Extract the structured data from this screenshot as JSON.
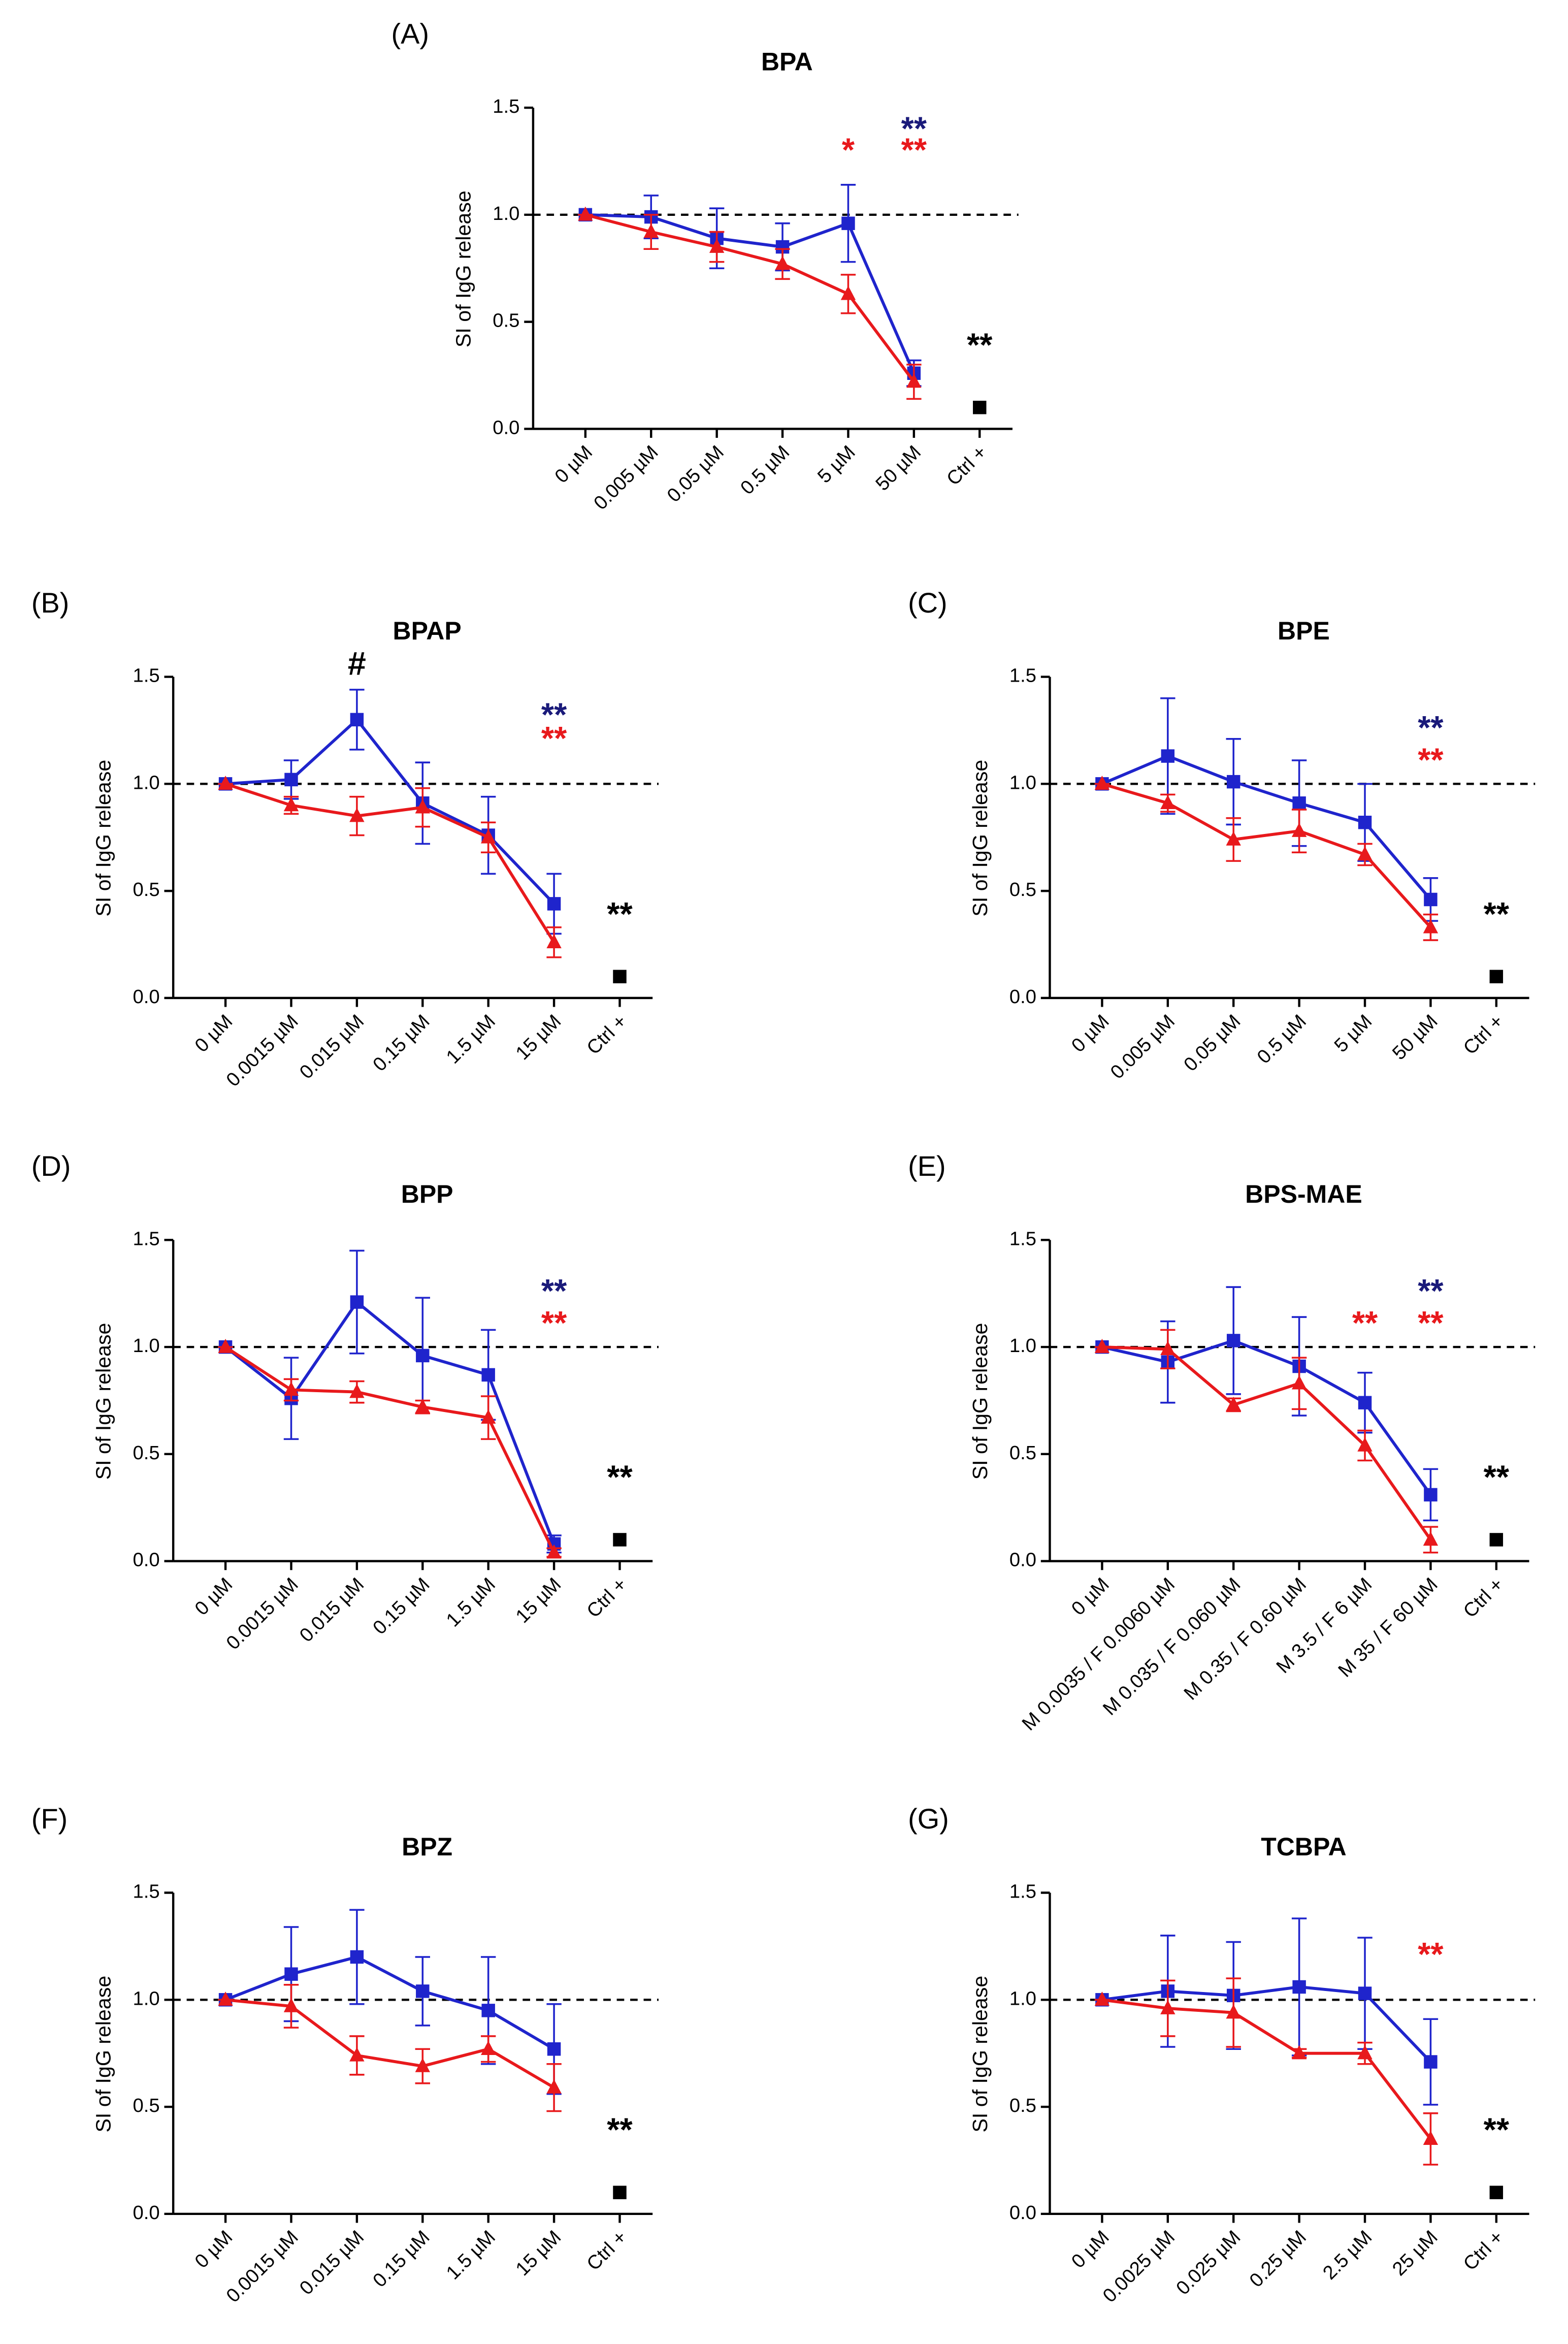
{
  "chart_data": [
    {
      "type": "line",
      "panel": "(A)",
      "title": "BPA",
      "y_label": "SI of IgG release",
      "categories": [
        "0 µM",
        "0.005 µM",
        "0.05 µM",
        "0.5 µM",
        "5 µM",
        "50 µM",
        "Ctrl +"
      ],
      "ylim": [
        0,
        1.5
      ],
      "yticks": [
        {
          "value": 0,
          "label": "0.0"
        },
        0.5,
        {
          "value": 1,
          "label": "1.0"
        },
        1.5
      ],
      "reference_line": 1,
      "series": [
        {
          "color": "#1f24cc",
          "marker": "square",
          "values": [
            1.0,
            0.99,
            0.89,
            0.85,
            0.96,
            0.26,
            null
          ],
          "errors": [
            0,
            0.1,
            0.14,
            0.11,
            0.18,
            0.06,
            null
          ]
        },
        {
          "color": "#e8191c",
          "marker": "triangle",
          "values": [
            1.0,
            0.92,
            0.85,
            0.77,
            0.63,
            0.22,
            null
          ],
          "errors": [
            0,
            0.08,
            0.07,
            0.07,
            0.09,
            0.08,
            null
          ]
        },
        {
          "color": "#000000",
          "marker": "square",
          "values": [
            null,
            null,
            null,
            null,
            null,
            null,
            0.1
          ]
        }
      ],
      "annotations": [
        {
          "text": "*",
          "color": "#e8191c",
          "x": "5 µM",
          "y": 1.29
        },
        {
          "text": "**",
          "color": "#1a1a7a",
          "x": "50 µM",
          "y": 1.39
        },
        {
          "text": "**",
          "color": "#e8191c",
          "x": "50 µM",
          "y": 1.29
        },
        {
          "text": "**",
          "color": "#000000",
          "x": "Ctrl +",
          "y": 0.38
        }
      ]
    },
    {
      "type": "line",
      "panel": "(B)",
      "title": "BPAP",
      "y_label": "SI of IgG release",
      "categories": [
        "0 µM",
        "0.0015 µM",
        "0.015 µM",
        "0.15 µM",
        "1.5 µM",
        "15 µM",
        "Ctrl +"
      ],
      "ylim": [
        0,
        1.5
      ],
      "yticks": [
        {
          "value": 0,
          "label": "0.0"
        },
        0.5,
        {
          "value": 1,
          "label": "1.0"
        },
        1.5
      ],
      "reference_line": 1,
      "series": [
        {
          "color": "#1f24cc",
          "marker": "square",
          "values": [
            1.0,
            1.02,
            1.3,
            0.91,
            0.76,
            0.44,
            null
          ],
          "errors": [
            0,
            0.09,
            0.14,
            0.19,
            0.18,
            0.14,
            null
          ]
        },
        {
          "color": "#e8191c",
          "marker": "triangle",
          "values": [
            1.0,
            0.9,
            0.85,
            0.89,
            0.75,
            0.26,
            null
          ],
          "errors": [
            0,
            0.04,
            0.09,
            0.09,
            0.07,
            0.07,
            null
          ]
        },
        {
          "color": "#000000",
          "marker": "square",
          "values": [
            null,
            null,
            null,
            null,
            null,
            null,
            0.1
          ]
        }
      ],
      "annotations": [
        {
          "text": "#",
          "color": "#000000",
          "x": "0.015 µM",
          "y": 1.55
        },
        {
          "text": "**",
          "color": "#1a1a7a",
          "x": "15 µM",
          "y": 1.31
        },
        {
          "text": "**",
          "color": "#e8191c",
          "x": "15 µM",
          "y": 1.2
        },
        {
          "text": "**",
          "color": "#000000",
          "x": "Ctrl +",
          "y": 0.38
        }
      ]
    },
    {
      "type": "line",
      "panel": "(C)",
      "title": "BPE",
      "y_label": "SI of IgG release",
      "categories": [
        "0 µM",
        "0.005 µM",
        "0.05 µM",
        "0.5 µM",
        "5 µM",
        "50 µM",
        "Ctrl +"
      ],
      "ylim": [
        0,
        1.5
      ],
      "yticks": [
        {
          "value": 0,
          "label": "0.0"
        },
        0.5,
        {
          "value": 1,
          "label": "1.0"
        },
        1.5
      ],
      "reference_line": 1,
      "series": [
        {
          "color": "#1f24cc",
          "marker": "square",
          "values": [
            1.0,
            1.13,
            1.01,
            0.91,
            0.82,
            0.46,
            null
          ],
          "errors": [
            0,
            0.27,
            0.2,
            0.2,
            0.18,
            0.1,
            null
          ]
        },
        {
          "color": "#e8191c",
          "marker": "triangle",
          "values": [
            1.0,
            0.91,
            0.74,
            0.78,
            0.67,
            0.33,
            null
          ],
          "errors": [
            0,
            0.04,
            0.1,
            0.1,
            0.05,
            0.06,
            null
          ]
        },
        {
          "color": "#000000",
          "marker": "square",
          "values": [
            null,
            null,
            null,
            null,
            null,
            null,
            0.1
          ]
        }
      ],
      "annotations": [
        {
          "text": "**",
          "color": "#1a1a7a",
          "x": "50 µM",
          "y": 1.25
        },
        {
          "text": "**",
          "color": "#e8191c",
          "x": "50 µM",
          "y": 1.1
        },
        {
          "text": "**",
          "color": "#000000",
          "x": "Ctrl +",
          "y": 0.38
        }
      ]
    },
    {
      "type": "line",
      "panel": "(D)",
      "title": "BPP",
      "y_label": "SI of IgG release",
      "categories": [
        "0 µM",
        "0.0015 µM",
        "0.015 µM",
        "0.15 µM",
        "1.5 µM",
        "15 µM",
        "Ctrl +"
      ],
      "ylim": [
        0,
        1.5
      ],
      "yticks": [
        {
          "value": 0,
          "label": "0.0"
        },
        0.5,
        {
          "value": 1,
          "label": "1.0"
        },
        1.5
      ],
      "reference_line": 1,
      "series": [
        {
          "color": "#1f24cc",
          "marker": "square",
          "values": [
            1.0,
            0.76,
            1.21,
            0.96,
            0.87,
            0.08,
            null
          ],
          "errors": [
            0,
            0.19,
            0.24,
            0.27,
            0.21,
            0.04,
            null
          ]
        },
        {
          "color": "#e8191c",
          "marker": "triangle",
          "values": [
            1.0,
            0.8,
            0.79,
            0.72,
            0.67,
            0.04,
            null
          ],
          "errors": [
            0,
            0.05,
            0.05,
            0.03,
            0.1,
            0.02,
            null
          ]
        },
        {
          "color": "#000000",
          "marker": "square",
          "values": [
            null,
            null,
            null,
            null,
            null,
            null,
            0.1
          ]
        }
      ],
      "annotations": [
        {
          "text": "**",
          "color": "#1a1a7a",
          "x": "15 µM",
          "y": 1.25
        },
        {
          "text": "**",
          "color": "#e8191c",
          "x": "15 µM",
          "y": 1.1
        },
        {
          "text": "**",
          "color": "#000000",
          "x": "Ctrl +",
          "y": 0.38
        }
      ]
    },
    {
      "type": "line",
      "panel": "(E)",
      "title": "BPS-MAE",
      "y_label": "SI of IgG release",
      "categories": [
        "0 µM",
        "M 0.0035 / F 0.0060 µM",
        "M 0.035 / F 0.060 µM",
        "M 0.35 / F 0.60 µM",
        "M 3.5 / F 6 µM",
        "M 35 / F 60 µM",
        "Ctrl +"
      ],
      "ylim": [
        0,
        1.5
      ],
      "yticks": [
        {
          "value": 0,
          "label": "0.0"
        },
        0.5,
        {
          "value": 1,
          "label": "1.0"
        },
        1.5
      ],
      "reference_line": 1,
      "series": [
        {
          "color": "#1f24cc",
          "marker": "square",
          "values": [
            1.0,
            0.93,
            1.03,
            0.91,
            0.74,
            0.31,
            null
          ],
          "errors": [
            0,
            0.19,
            0.25,
            0.23,
            0.14,
            0.12,
            null
          ]
        },
        {
          "color": "#e8191c",
          "marker": "triangle",
          "values": [
            1.0,
            0.99,
            0.73,
            0.83,
            0.54,
            0.1,
            null
          ],
          "errors": [
            0,
            0.09,
            0.03,
            0.12,
            0.07,
            0.06,
            null
          ]
        },
        {
          "color": "#000000",
          "marker": "square",
          "values": [
            null,
            null,
            null,
            null,
            null,
            null,
            0.1
          ]
        }
      ],
      "annotations": [
        {
          "text": "**",
          "color": "#e8191c",
          "x": "M 3.5 / F 6 µM",
          "y": 1.1
        },
        {
          "text": "**",
          "color": "#1a1a7a",
          "x": "M 35 / F 60 µM",
          "y": 1.25
        },
        {
          "text": "**",
          "color": "#e8191c",
          "x": "M 35 / F 60 µM",
          "y": 1.1
        },
        {
          "text": "**",
          "color": "#000000",
          "x": "Ctrl +",
          "y": 0.38
        }
      ]
    },
    {
      "type": "line",
      "panel": "(F)",
      "title": "BPZ",
      "y_label": "SI of IgG release",
      "categories": [
        "0 µM",
        "0.0015 µM",
        "0.015 µM",
        "0.15 µM",
        "1.5 µM",
        "15 µM",
        "Ctrl +"
      ],
      "ylim": [
        0,
        1.5
      ],
      "yticks": [
        {
          "value": 0,
          "label": "0.0"
        },
        0.5,
        {
          "value": 1,
          "label": "1.0"
        },
        1.5
      ],
      "reference_line": 1,
      "series": [
        {
          "color": "#1f24cc",
          "marker": "square",
          "values": [
            1.0,
            1.12,
            1.2,
            1.04,
            0.95,
            0.77,
            null
          ],
          "errors": [
            0,
            0.22,
            0.22,
            0.16,
            0.25,
            0.21,
            null
          ]
        },
        {
          "color": "#e8191c",
          "marker": "triangle",
          "values": [
            1.0,
            0.97,
            0.74,
            0.69,
            0.77,
            0.59,
            null
          ],
          "errors": [
            0,
            0.1,
            0.09,
            0.08,
            0.06,
            0.11,
            null
          ]
        },
        {
          "color": "#000000",
          "marker": "square",
          "values": [
            null,
            null,
            null,
            null,
            null,
            null,
            0.1
          ]
        }
      ],
      "annotations": [
        {
          "text": "**",
          "color": "#000000",
          "x": "Ctrl +",
          "y": 0.38
        }
      ]
    },
    {
      "type": "line",
      "panel": "(G)",
      "title": "TCBPA",
      "y_label": "SI of IgG release",
      "categories": [
        "0 µM",
        "0.0025 µM",
        "0.025 µM",
        "0.25 µM",
        "2.5 µM",
        "25 µM",
        "Ctrl +"
      ],
      "ylim": [
        0,
        1.5
      ],
      "yticks": [
        {
          "value": 0,
          "label": "0.0"
        },
        0.5,
        {
          "value": 1,
          "label": "1.0"
        },
        1.5
      ],
      "reference_line": 1,
      "series": [
        {
          "color": "#1f24cc",
          "marker": "square",
          "values": [
            1.0,
            1.04,
            1.02,
            1.06,
            1.03,
            0.71,
            null
          ],
          "errors": [
            0,
            0.26,
            0.25,
            0.32,
            0.26,
            0.2,
            null
          ]
        },
        {
          "color": "#e8191c",
          "marker": "triangle",
          "values": [
            1.0,
            0.96,
            0.94,
            0.75,
            0.75,
            0.35,
            null
          ],
          "errors": [
            0,
            0.13,
            0.16,
            0.02,
            0.05,
            0.12,
            null
          ]
        },
        {
          "color": "#000000",
          "marker": "square",
          "values": [
            null,
            null,
            null,
            null,
            null,
            null,
            0.1
          ]
        }
      ],
      "annotations": [
        {
          "text": "**",
          "color": "#e8191c",
          "x": "25 µM",
          "y": 1.2
        },
        {
          "text": "**",
          "color": "#000000",
          "x": "Ctrl +",
          "y": 0.38
        }
      ]
    }
  ]
}
